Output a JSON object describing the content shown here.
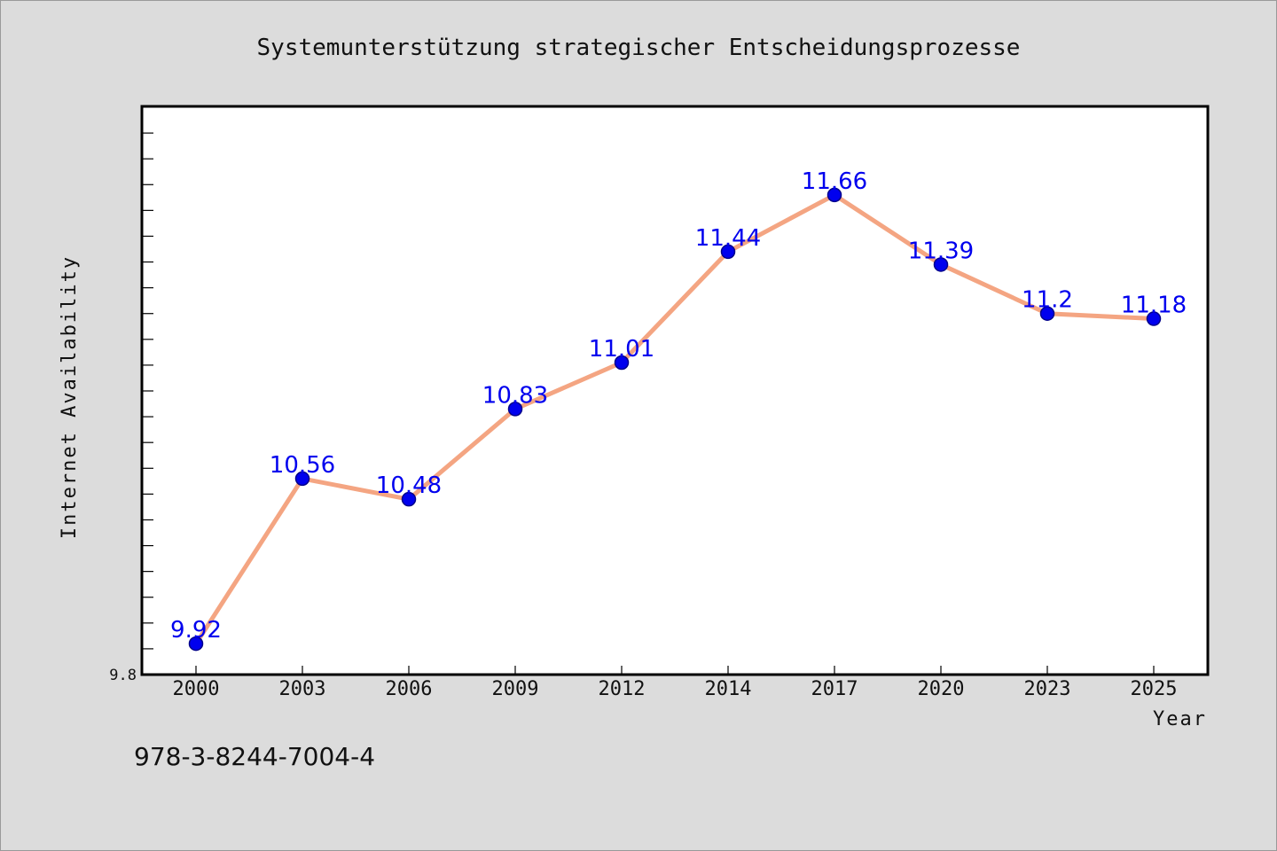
{
  "chart_data": {
    "type": "line",
    "title": "Systemunterstützung strategischer Entscheidungsprozesse",
    "xlabel": "Year",
    "ylabel": "Internet Availability",
    "categories": [
      "2000",
      "2003",
      "2006",
      "2009",
      "2012",
      "2014",
      "2017",
      "2020",
      "2023",
      "2025"
    ],
    "series": [
      {
        "values": [
          9.92,
          10.56,
          10.48,
          10.83,
          11.01,
          11.44,
          11.66,
          11.39,
          11.2,
          11.18
        ],
        "labels": [
          "9.92",
          "10.56",
          "10.48",
          "10.83",
          "11.01",
          "11.44",
          "11.66",
          "11.39",
          "11.2",
          "11.18"
        ]
      }
    ],
    "ylim": [
      9.8,
      12.0
    ],
    "yticks_labeled": [
      "9.8"
    ],
    "grid": false,
    "legend": "none",
    "colors": {
      "line": "#f4a582",
      "marker": "#0000ee",
      "marker_edge": "#00008b",
      "data_label": "#0000ee",
      "plot_background": "#ffffff",
      "page_background": "#dcdcdc"
    }
  },
  "footer": {
    "isbn": "978-3-8244-7004-4"
  }
}
